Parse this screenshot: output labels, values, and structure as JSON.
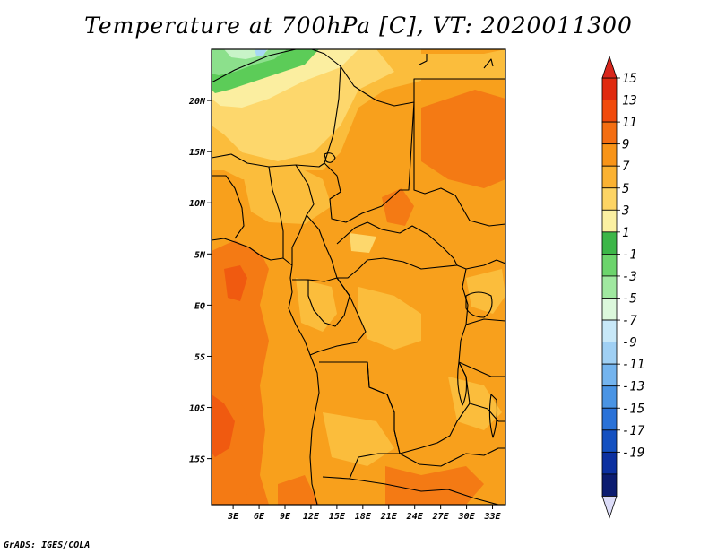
{
  "title": "Temperature at 700hPa [C], VT: 2020011300",
  "credit": "GrADS: IGES/COLA",
  "lat_labels": [
    "20N",
    "15N",
    "10N",
    "5N",
    "EQ",
    "5S",
    "10S",
    "15S"
  ],
  "lat_values": [
    20,
    15,
    10,
    5,
    0,
    -5,
    -10,
    -15
  ],
  "lon_labels": [
    "3E",
    "6E",
    "9E",
    "12E",
    "15E",
    "18E",
    "21E",
    "24E",
    "27E",
    "30E",
    "33E"
  ],
  "lon_values": [
    3,
    6,
    9,
    12,
    15,
    18,
    21,
    24,
    27,
    30,
    33
  ],
  "extent": {
    "lon": [
      0.5,
      34.5
    ],
    "lat": [
      -19.5,
      25
    ]
  },
  "colorbar": {
    "labels": [
      "15",
      "13",
      "11",
      "9",
      "7",
      "5",
      "3",
      "1",
      "-1",
      "-3",
      "-5",
      "-7",
      "-9",
      "-11",
      "-13",
      "-15",
      "-17",
      "-19"
    ],
    "colors": [
      "#e02a10",
      "#f04a0c",
      "#f46e12",
      "#f89418",
      "#fbb232",
      "#fdd464",
      "#fbf0a2",
      "#3cb648",
      "#6cd46c",
      "#a0e8a0",
      "#dcf8dc",
      "#c8e8f8",
      "#a0d0f4",
      "#74b4ee",
      "#4a94e4",
      "#2a72d8",
      "#1450c0",
      "#0c30a0",
      "#0c1c70"
    ],
    "top_arrow_color": "#d8261c",
    "bottom_arrow_color": "#dcdcf8"
  },
  "field_colors": {
    "c13": "#f05a10",
    "c11": "#f47a14",
    "c9": "#f8a01c",
    "c7": "#fbbd3c",
    "c5": "#fdd76c",
    "c3": "#fbeea0",
    "c1": "#5ccc58",
    "cm1": "#8ce08c",
    "cm3": "#c8f4c8",
    "cm5": "#a8d8f4"
  }
}
